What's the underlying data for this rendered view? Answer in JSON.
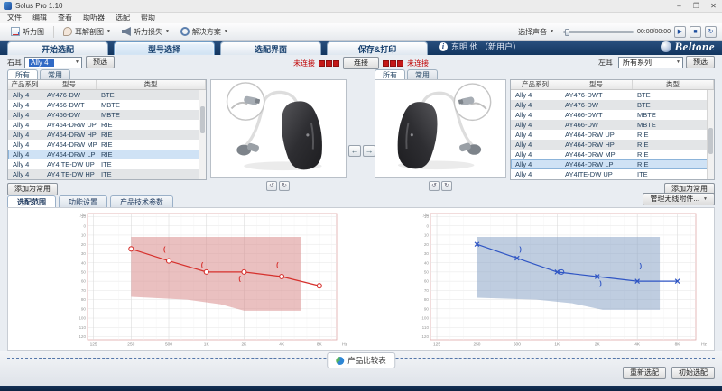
{
  "window": {
    "title": "Solus Pro 1.10",
    "minimize": "–",
    "maximize": "❐",
    "close": "✕"
  },
  "menu_bar": {
    "items": [
      "文件",
      "编辑",
      "查看",
      "助听器",
      "选配",
      "帮助"
    ]
  },
  "toolbar": {
    "audiogram_label": "听力图",
    "ear_anatomy_label": "耳解剖图",
    "hearing_loss_label": "听力损失",
    "solutions_label": "解决方案",
    "select_sound_label": "选择声音",
    "time_display": "00:00/00:00",
    "play_glyph": "▶",
    "stop_glyph": "■",
    "loop_glyph": "↻"
  },
  "brand": {
    "logo_text": "Beltone"
  },
  "tabs": [
    {
      "label": "开始选配",
      "active": false
    },
    {
      "label": "型号选择",
      "active": true
    },
    {
      "label": "选配界面",
      "active": false
    },
    {
      "label": "保存&打印",
      "active": false
    }
  ],
  "patient": {
    "info_glyph": "i",
    "name": "东明 他 （新用户）"
  },
  "ear_bars": {
    "right": {
      "ear_label": "右耳",
      "series_value": "Ally 4",
      "preselect_label": "预选"
    },
    "left": {
      "ear_label": "左耳",
      "series_value": "所有系列",
      "preselect_label": "预选"
    }
  },
  "connection": {
    "left_status": "未连接",
    "right_status": "未连接",
    "connect_label": "连接"
  },
  "panel_tabs": {
    "all_label": "所有",
    "favorites_label": "常用"
  },
  "tables": {
    "headers": [
      "产品系列",
      "型号",
      "类型"
    ],
    "left_rows": [
      {
        "series": "Ally 4",
        "model": "AY476-DW",
        "type": "BTE",
        "selected": false
      },
      {
        "series": "Ally 4",
        "model": "AY466-DWT",
        "type": "MBTE",
        "selected": false
      },
      {
        "series": "Ally 4",
        "model": "AY466-DW",
        "type": "MBTE",
        "selected": false
      },
      {
        "series": "Ally 4",
        "model": "AY464-DRW UP",
        "type": "RIE",
        "selected": false
      },
      {
        "series": "Ally 4",
        "model": "AY464-DRW HP",
        "type": "RIE",
        "selected": false
      },
      {
        "series": "Ally 4",
        "model": "AY464-DRW MP",
        "type": "RIE",
        "selected": false
      },
      {
        "series": "Ally 4",
        "model": "AY464-DRW LP",
        "type": "RIE",
        "selected": true
      },
      {
        "series": "Ally 4",
        "model": "AY4ITE-DW UP",
        "type": "ITE",
        "selected": false
      },
      {
        "series": "Ally 4",
        "model": "AY4ITE-DW HP",
        "type": "ITE",
        "selected": false
      }
    ],
    "right_rows": [
      {
        "series": "Ally 4",
        "model": "AY476-DWT",
        "type": "BTE",
        "selected": false
      },
      {
        "series": "Ally 4",
        "model": "AY476-DW",
        "type": "BTE",
        "selected": false
      },
      {
        "series": "Ally 4",
        "model": "AY466-DWT",
        "type": "MBTE",
        "selected": false
      },
      {
        "series": "Ally 4",
        "model": "AY466-DW",
        "type": "MBTE",
        "selected": false
      },
      {
        "series": "Ally 4",
        "model": "AY464-DRW UP",
        "type": "RIE",
        "selected": false
      },
      {
        "series": "Ally 4",
        "model": "AY464-DRW HP",
        "type": "RIE",
        "selected": false
      },
      {
        "series": "Ally 4",
        "model": "AY464-DRW MP",
        "type": "RIE",
        "selected": false
      },
      {
        "series": "Ally 4",
        "model": "AY464-DRW LP",
        "type": "RIE",
        "selected": true
      },
      {
        "series": "Ally 4",
        "model": "AY4ITE-DW UP",
        "type": "ITE",
        "selected": false
      }
    ],
    "add_favorite_label": "添加为常用",
    "manage_accessories_label": "管理无线附件..."
  },
  "lower_tabs": [
    {
      "label": "选配范围",
      "active": true
    },
    {
      "label": "功能设置",
      "active": false
    },
    {
      "label": "产品技术参数",
      "active": false
    }
  ],
  "footer": {
    "compare_label": "产品比较表",
    "refit_label": "重新选配",
    "initial_fit_label": "初始选配"
  },
  "colors": {
    "brand_navy": "#16355f",
    "alert_red": "#c00000",
    "right_ear_red": "#d6302c",
    "left_ear_blue": "#2f55c4",
    "selection_blue": "#cfe2f5"
  },
  "chart_data": [
    {
      "type": "line",
      "name": "right-ear-audiogram-fitting-range",
      "line_color": "#d6302c",
      "marker": "circle",
      "region_color": "#d98c8c",
      "region_opacity": 0.55,
      "x_tick_freqs": [
        125,
        250,
        500,
        1000,
        2000,
        4000,
        8000
      ],
      "x_tick_labels": [
        "125",
        "250",
        "500",
        "1K",
        "2K",
        "4K",
        "8K"
      ],
      "x_unit_label": "Hz",
      "y_axis_label": "dB",
      "y_ticks": [
        -10,
        0,
        10,
        20,
        30,
        40,
        50,
        60,
        70,
        80,
        90,
        100,
        110,
        120
      ],
      "ylim": [
        -10,
        120
      ],
      "xlim_hz": [
        112,
        11000
      ],
      "air_conduction": {
        "freqs": [
          250,
          500,
          1000,
          2000,
          4000,
          8000
        ],
        "thresholds_db": [
          25,
          38,
          50,
          50,
          55,
          65
        ]
      },
      "bone_conduction": {
        "glyph": "(",
        "freqs": [
          500,
          1000,
          2000,
          4000
        ],
        "thresholds_db": [
          25,
          42,
          57,
          42
        ]
      },
      "fitting_range_polygon": [
        [
          250,
          12
        ],
        [
          5700,
          12
        ],
        [
          5700,
          92
        ],
        [
          2000,
          92
        ],
        [
          1300,
          85
        ],
        [
          700,
          80
        ],
        [
          250,
          77
        ]
      ]
    },
    {
      "type": "line",
      "name": "left-ear-audiogram-fitting-range",
      "line_color": "#2f55c4",
      "marker": "x",
      "region_color": "#7f9cc2",
      "region_opacity": 0.5,
      "x_tick_freqs": [
        125,
        250,
        500,
        1000,
        2000,
        4000,
        8000
      ],
      "x_tick_labels": [
        "125",
        "250",
        "500",
        "1K",
        "2K",
        "4K",
        "8K"
      ],
      "x_unit_label": "Hz",
      "y_axis_label": "dB",
      "y_ticks": [
        -10,
        0,
        10,
        20,
        30,
        40,
        50,
        60,
        70,
        80,
        90,
        100,
        110,
        120
      ],
      "ylim": [
        -10,
        120
      ],
      "xlim_hz": [
        112,
        11000
      ],
      "air_conduction": {
        "freqs": [
          250,
          500,
          1000,
          2000,
          4000,
          8000
        ],
        "thresholds_db": [
          20,
          35,
          50,
          55,
          60,
          60
        ]
      },
      "bone_conduction": {
        "glyph": ")",
        "freqs": [
          500,
          2000,
          4000
        ],
        "thresholds_db": [
          25,
          62,
          43
        ]
      },
      "overlay_circle": [
        1080,
        50
      ],
      "fitting_range_polygon": [
        [
          250,
          12
        ],
        [
          5900,
          12
        ],
        [
          5900,
          91
        ],
        [
          2200,
          91
        ],
        [
          1300,
          84
        ],
        [
          700,
          80
        ],
        [
          250,
          78
        ]
      ]
    }
  ]
}
